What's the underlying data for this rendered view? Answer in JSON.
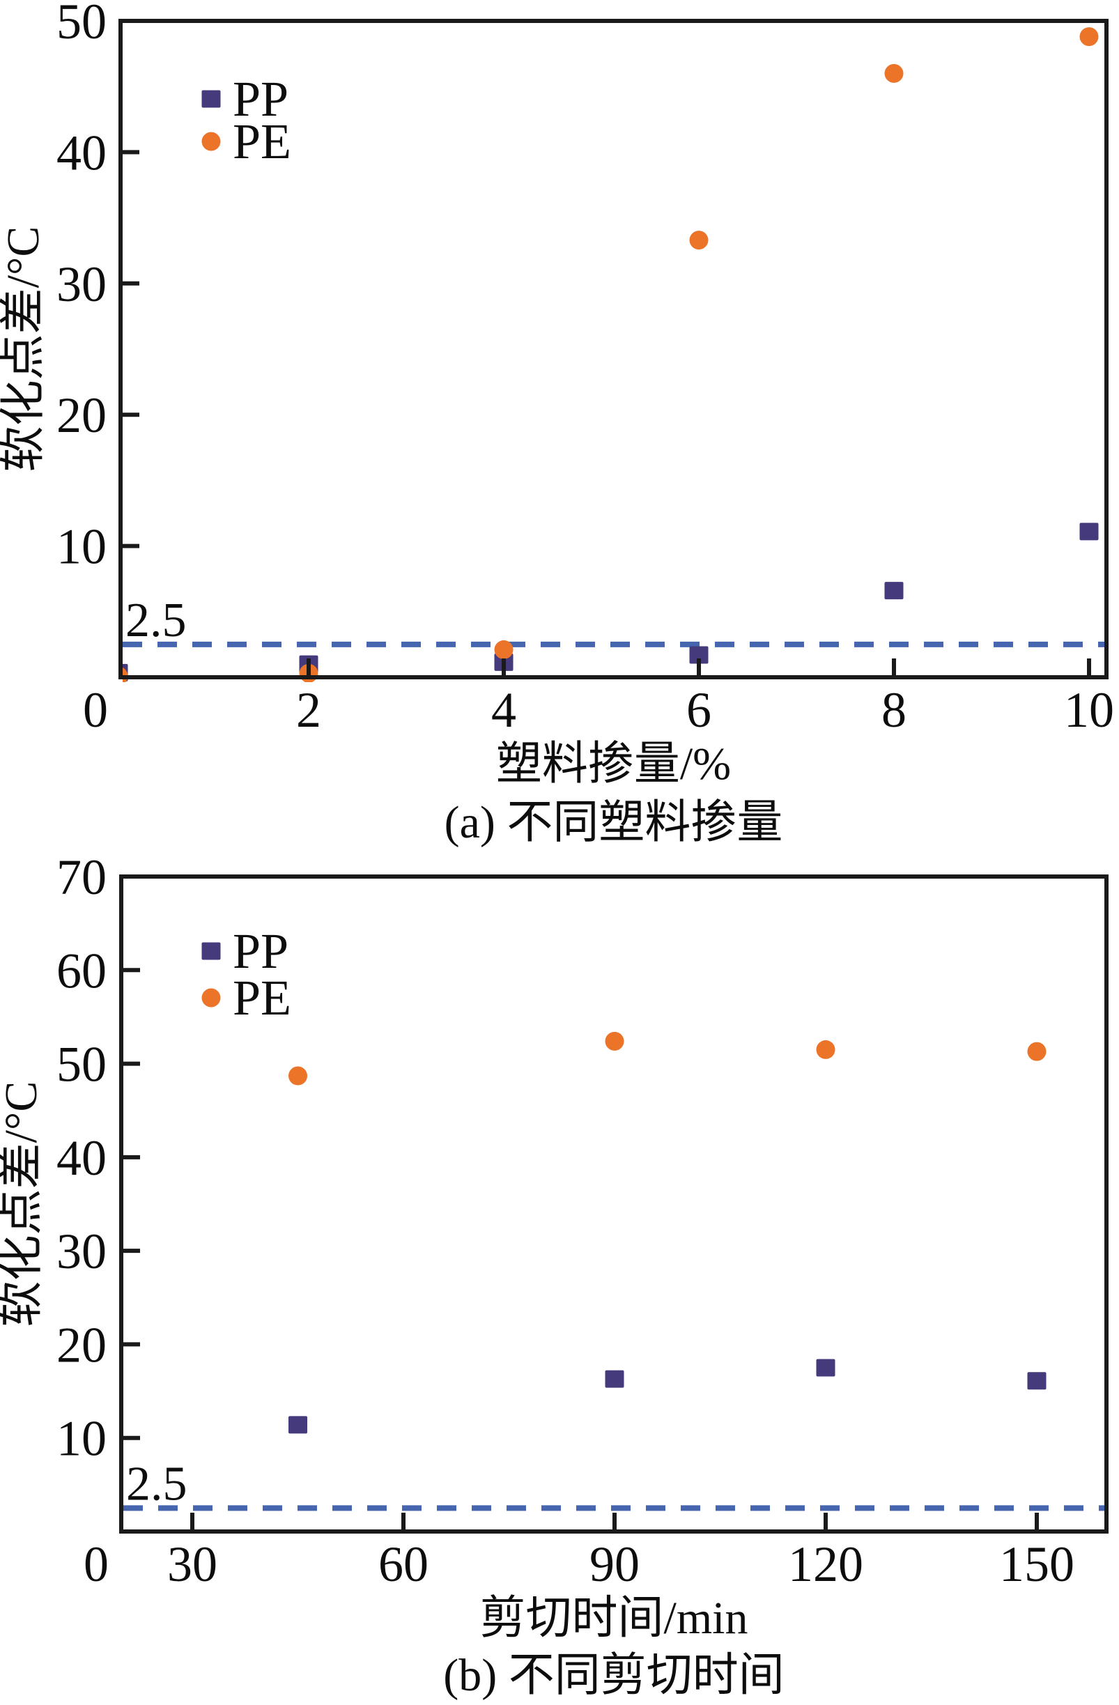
{
  "figure": {
    "background": "#ffffff",
    "axis_color": "#1a1a1a",
    "text_color": "#0d0d0d",
    "pp_color": "#453a7c",
    "pe_color": "#ec7429",
    "dash_color": "#4565ae"
  },
  "chart_data": [
    {
      "type": "scatter",
      "panel": "a",
      "xlabel": "塑料掺量/%",
      "ylabel": "软化点差/°C",
      "caption": "(a) 不同塑料掺量",
      "xlim": [
        0,
        10.2
      ],
      "ylim": [
        0,
        50
      ],
      "xticks": [
        0,
        2,
        4,
        6,
        8,
        10
      ],
      "yticks": [
        10,
        20,
        30,
        40,
        50
      ],
      "grid": false,
      "legend_position": "upper-left-inside",
      "legend": [
        "PP",
        "PE"
      ],
      "threshold": {
        "value": 2.5,
        "label": "2.5"
      },
      "series": [
        {
          "name": "PP",
          "marker": "square",
          "points": [
            [
              0.05,
              0.35
            ],
            [
              2,
              1.0
            ],
            [
              4,
              1.15
            ],
            [
              6,
              1.7
            ],
            [
              8,
              6.6
            ],
            [
              10,
              11.1
            ]
          ]
        },
        {
          "name": "PE",
          "marker": "circle",
          "points": [
            [
              0.05,
              0.1
            ],
            [
              2,
              0.3
            ],
            [
              4,
              2.1
            ],
            [
              6,
              33.3
            ],
            [
              8,
              46.0
            ],
            [
              10,
              48.8
            ]
          ]
        }
      ]
    },
    {
      "type": "scatter",
      "panel": "b",
      "xlabel": "剪切时间/min",
      "ylabel": "软化点差/°C",
      "caption": "(b) 不同剪切时间",
      "xlim": [
        20,
        160
      ],
      "ylim": [
        0,
        70
      ],
      "xticks": [
        0,
        30,
        60,
        90,
        120,
        150
      ],
      "yticks": [
        10,
        20,
        30,
        40,
        50,
        60,
        70
      ],
      "grid": false,
      "legend_position": "upper-left-inside",
      "legend": [
        "PP",
        "PE"
      ],
      "threshold": {
        "value": 2.5,
        "label": "2.5"
      },
      "series": [
        {
          "name": "PP",
          "marker": "square",
          "points": [
            [
              45,
              11.4
            ],
            [
              90,
              16.3
            ],
            [
              120,
              17.5
            ],
            [
              150,
              16.1
            ]
          ]
        },
        {
          "name": "PE",
          "marker": "circle",
          "points": [
            [
              45,
              48.7
            ],
            [
              90,
              52.4
            ],
            [
              120,
              51.5
            ],
            [
              150,
              51.3
            ]
          ]
        }
      ]
    }
  ]
}
